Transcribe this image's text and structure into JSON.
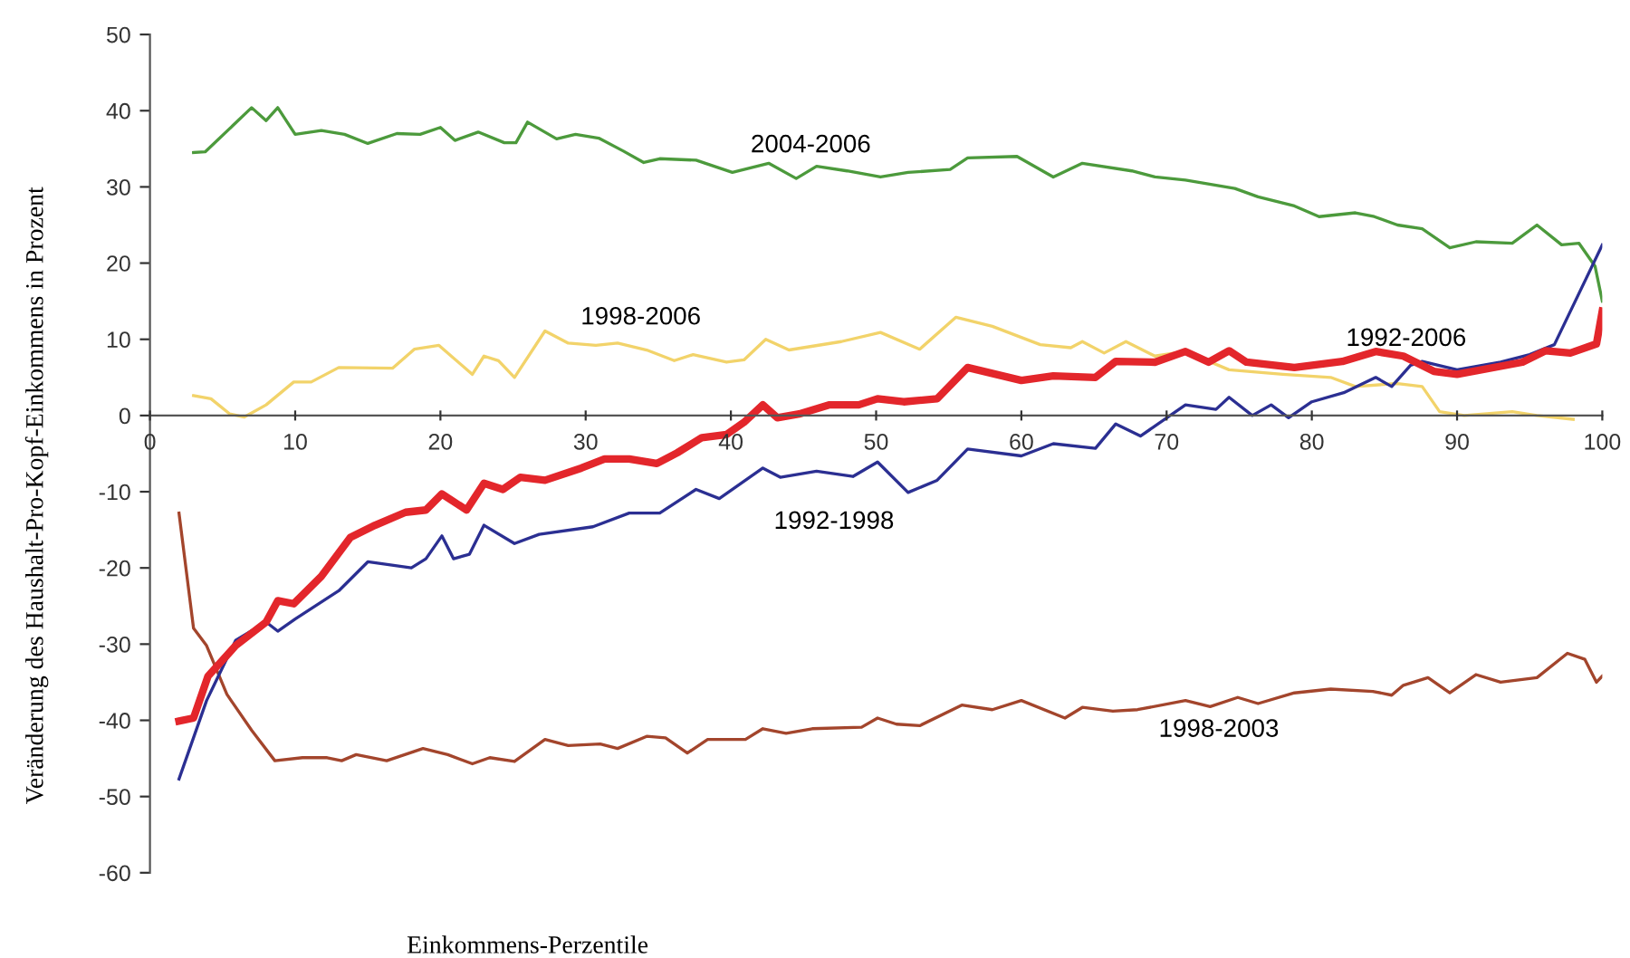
{
  "chart_data": {
    "type": "line",
    "xlabel": "Einkommens-Perzentile",
    "ylabel": "Veränderung des Haushalt-Pro-Kopf-Einkommens in Prozent",
    "xlim": [
      0,
      100
    ],
    "ylim": [
      -60,
      50
    ],
    "xticks": [
      0,
      10,
      20,
      30,
      40,
      50,
      60,
      70,
      80,
      90,
      100
    ],
    "yticks": [
      -60,
      -50,
      -40,
      -30,
      -20,
      -10,
      0,
      10,
      20,
      30,
      40,
      50
    ],
    "grid": false,
    "marker": "none",
    "line_style": "solid",
    "series": [
      {
        "name": "2004-2006",
        "color": "#4c9a3c",
        "x": [
          3,
          3.8,
          7,
          8,
          8.8,
          10,
          11.8,
          13.4,
          15,
          17,
          18.6,
          20,
          21,
          22.6,
          24.4,
          25.2,
          26,
          28,
          29.3,
          30.9,
          32.6,
          34,
          35.1,
          37.6,
          40.1,
          42.6,
          44.5,
          45.9,
          48,
          50.3,
          52.2,
          55.1,
          56.3,
          59.7,
          62.2,
          64.2,
          67.6,
          69.2,
          71.3,
          74.7,
          76.3,
          78.8,
          80.5,
          83,
          84.3,
          85.9,
          87.6,
          89.5,
          91.3,
          93.8,
          95.5,
          97.2,
          98.4,
          99.5,
          100
        ],
        "values": [
          34.5,
          34.6,
          40.4,
          38.7,
          40.4,
          36.9,
          37.4,
          36.9,
          35.7,
          37,
          36.9,
          37.8,
          36.1,
          37.2,
          35.8,
          35.8,
          38.5,
          36.3,
          36.9,
          36.4,
          34.7,
          33.2,
          33.7,
          33.5,
          31.9,
          33.1,
          31.1,
          32.7,
          32.1,
          31.3,
          31.9,
          32.3,
          33.8,
          34,
          31.3,
          33.1,
          32.1,
          31.3,
          30.9,
          29.8,
          28.7,
          27.5,
          26.1,
          26.6,
          26.1,
          25,
          24.5,
          22,
          22.8,
          22.6,
          25,
          22.4,
          22.6,
          19.6,
          15
        ]
      },
      {
        "name": "1998-2006",
        "color": "#f2d36a",
        "x": [
          3,
          4.2,
          5.5,
          6.5,
          8,
          9.9,
          11.1,
          13,
          16.7,
          18.2,
          19.9,
          22.2,
          23,
          24,
          25.1,
          27.2,
          28.8,
          30.7,
          32.2,
          34.2,
          36.1,
          37.4,
          39.7,
          40.9,
          42.4,
          44,
          47.6,
          50.3,
          53,
          55.5,
          58,
          61.3,
          63.4,
          64.2,
          65.7,
          67.2,
          69.2,
          71.3,
          74.3,
          78,
          81.3,
          83,
          85.9,
          87.6,
          88.8,
          90.5,
          93.8,
          95.5,
          98
        ],
        "values": [
          2.6,
          2.2,
          0.2,
          -0.2,
          1.4,
          4.4,
          4.4,
          6.3,
          6.2,
          8.7,
          9.2,
          5.4,
          7.8,
          7.2,
          5,
          11.1,
          9.5,
          9.2,
          9.5,
          8.6,
          7.2,
          8,
          7,
          7.3,
          10,
          8.6,
          9.7,
          10.9,
          8.7,
          12.9,
          11.7,
          9.3,
          8.9,
          9.7,
          8.2,
          9.7,
          7.8,
          8.4,
          6,
          5.4,
          5,
          3.8,
          4.2,
          3.8,
          0.5,
          0,
          0.5,
          0,
          -0.5
        ]
      },
      {
        "name": "1998-2003",
        "color": "#a3452c",
        "x": [
          2,
          3,
          3.9,
          5.3,
          7,
          8.6,
          10.5,
          12.2,
          13.2,
          14.2,
          16.3,
          18.8,
          20.5,
          22.2,
          23.4,
          25.1,
          27.2,
          28.8,
          31,
          32.2,
          34.2,
          35.5,
          37,
          38.4,
          41,
          42.2,
          43.8,
          45.6,
          49,
          50.1,
          51.4,
          53,
          55.9,
          58,
          60,
          63,
          64.2,
          66.3,
          68,
          71.3,
          73,
          74.9,
          76.3,
          78.8,
          81.3,
          84.2,
          85.5,
          86.3,
          88,
          89.5,
          91.3,
          93,
          95.5,
          97.6,
          98.8,
          99.6,
          100
        ],
        "values": [
          -12.8,
          -27.9,
          -30.2,
          -36.6,
          -41.3,
          -45.3,
          -44.9,
          -44.9,
          -45.3,
          -44.5,
          -45.3,
          -43.7,
          -44.5,
          -45.7,
          -44.9,
          -45.4,
          -42.5,
          -43.3,
          -43.1,
          -43.7,
          -42.1,
          -42.3,
          -44.3,
          -42.5,
          -42.5,
          -41.1,
          -41.7,
          -41.1,
          -40.9,
          -39.7,
          -40.5,
          -40.7,
          -38,
          -38.6,
          -37.4,
          -39.7,
          -38.3,
          -38.8,
          -38.6,
          -37.4,
          -38.2,
          -37,
          -37.8,
          -36.4,
          -35.9,
          -36.2,
          -36.7,
          -35.4,
          -34.4,
          -36.4,
          -34,
          -35,
          -34.4,
          -31.2,
          -32,
          -35,
          -34.2
        ]
      },
      {
        "name": "1992-1998",
        "color": "#2b2f92",
        "x": [
          2,
          3.9,
          5.9,
          8,
          8.8,
          10,
          13,
          15,
          18,
          19,
          20.1,
          20.9,
          22,
          23,
          25.1,
          26.8,
          30.5,
          33,
          35.1,
          37.6,
          39.2,
          42.2,
          43.4,
          45.9,
          48.4,
          50.1,
          52.2,
          54.2,
          56.3,
          60,
          62.2,
          65.1,
          66.5,
          68.2,
          71.3,
          73.4,
          74.3,
          75.9,
          77.2,
          78.4,
          80,
          82.2,
          84.4,
          85.5,
          86.8,
          87.6,
          90,
          93,
          95,
          96.7,
          100
        ],
        "values": [
          -47.7,
          -37.4,
          -29.5,
          -27.1,
          -28.3,
          -26.7,
          -23,
          -19.2,
          -20,
          -18.8,
          -15.8,
          -18.8,
          -18.2,
          -14.4,
          -16.8,
          -15.6,
          -14.6,
          -12.8,
          -12.8,
          -9.7,
          -10.9,
          -6.9,
          -8.1,
          -7.3,
          -8,
          -6.1,
          -10.1,
          -8.5,
          -4.4,
          -5.3,
          -3.7,
          -4.3,
          -1.1,
          -2.7,
          1.4,
          0.8,
          2.4,
          0,
          1.4,
          -0.3,
          1.8,
          3,
          5,
          3.8,
          6.6,
          7.1,
          6,
          7,
          8,
          9.3,
          22.4
        ]
      },
      {
        "name": "1992-2006",
        "color": "#e3262b",
        "x": [
          2,
          3,
          4,
          5.9,
          8,
          8.8,
          9.9,
          11.8,
          13.8,
          15.5,
          17.6,
          19,
          20.1,
          21.8,
          23,
          24.3,
          25.5,
          27.2,
          29.7,
          31.3,
          33,
          34.9,
          36.3,
          38,
          39.7,
          40.9,
          42.2,
          43.2,
          44.7,
          46.8,
          48.8,
          50.1,
          51.9,
          54.2,
          56.3,
          60,
          62.2,
          65.1,
          66.5,
          69.2,
          71.3,
          72.9,
          74.3,
          75.5,
          78.8,
          82.1,
          84.4,
          86.3,
          88.4,
          90,
          94.5,
          96.1,
          97.8,
          99.6,
          100
        ],
        "values": [
          -40.1,
          -39.7,
          -34.2,
          -30.2,
          -27.1,
          -24.3,
          -24.7,
          -21.1,
          -16,
          -14.4,
          -12.7,
          -12.4,
          -10.3,
          -12.4,
          -8.9,
          -9.7,
          -8.1,
          -8.5,
          -6.9,
          -5.7,
          -5.7,
          -6.3,
          -4.9,
          -2.9,
          -2.5,
          -0.9,
          1.4,
          -0.3,
          0.2,
          1.4,
          1.4,
          2.2,
          1.8,
          2.2,
          6.3,
          4.6,
          5.2,
          5,
          7.1,
          7,
          8.4,
          7,
          8.5,
          7,
          6.3,
          7.1,
          8.4,
          7.8,
          5.8,
          5.4,
          7,
          8.5,
          8.2,
          9.4,
          13.7
        ]
      }
    ]
  }
}
